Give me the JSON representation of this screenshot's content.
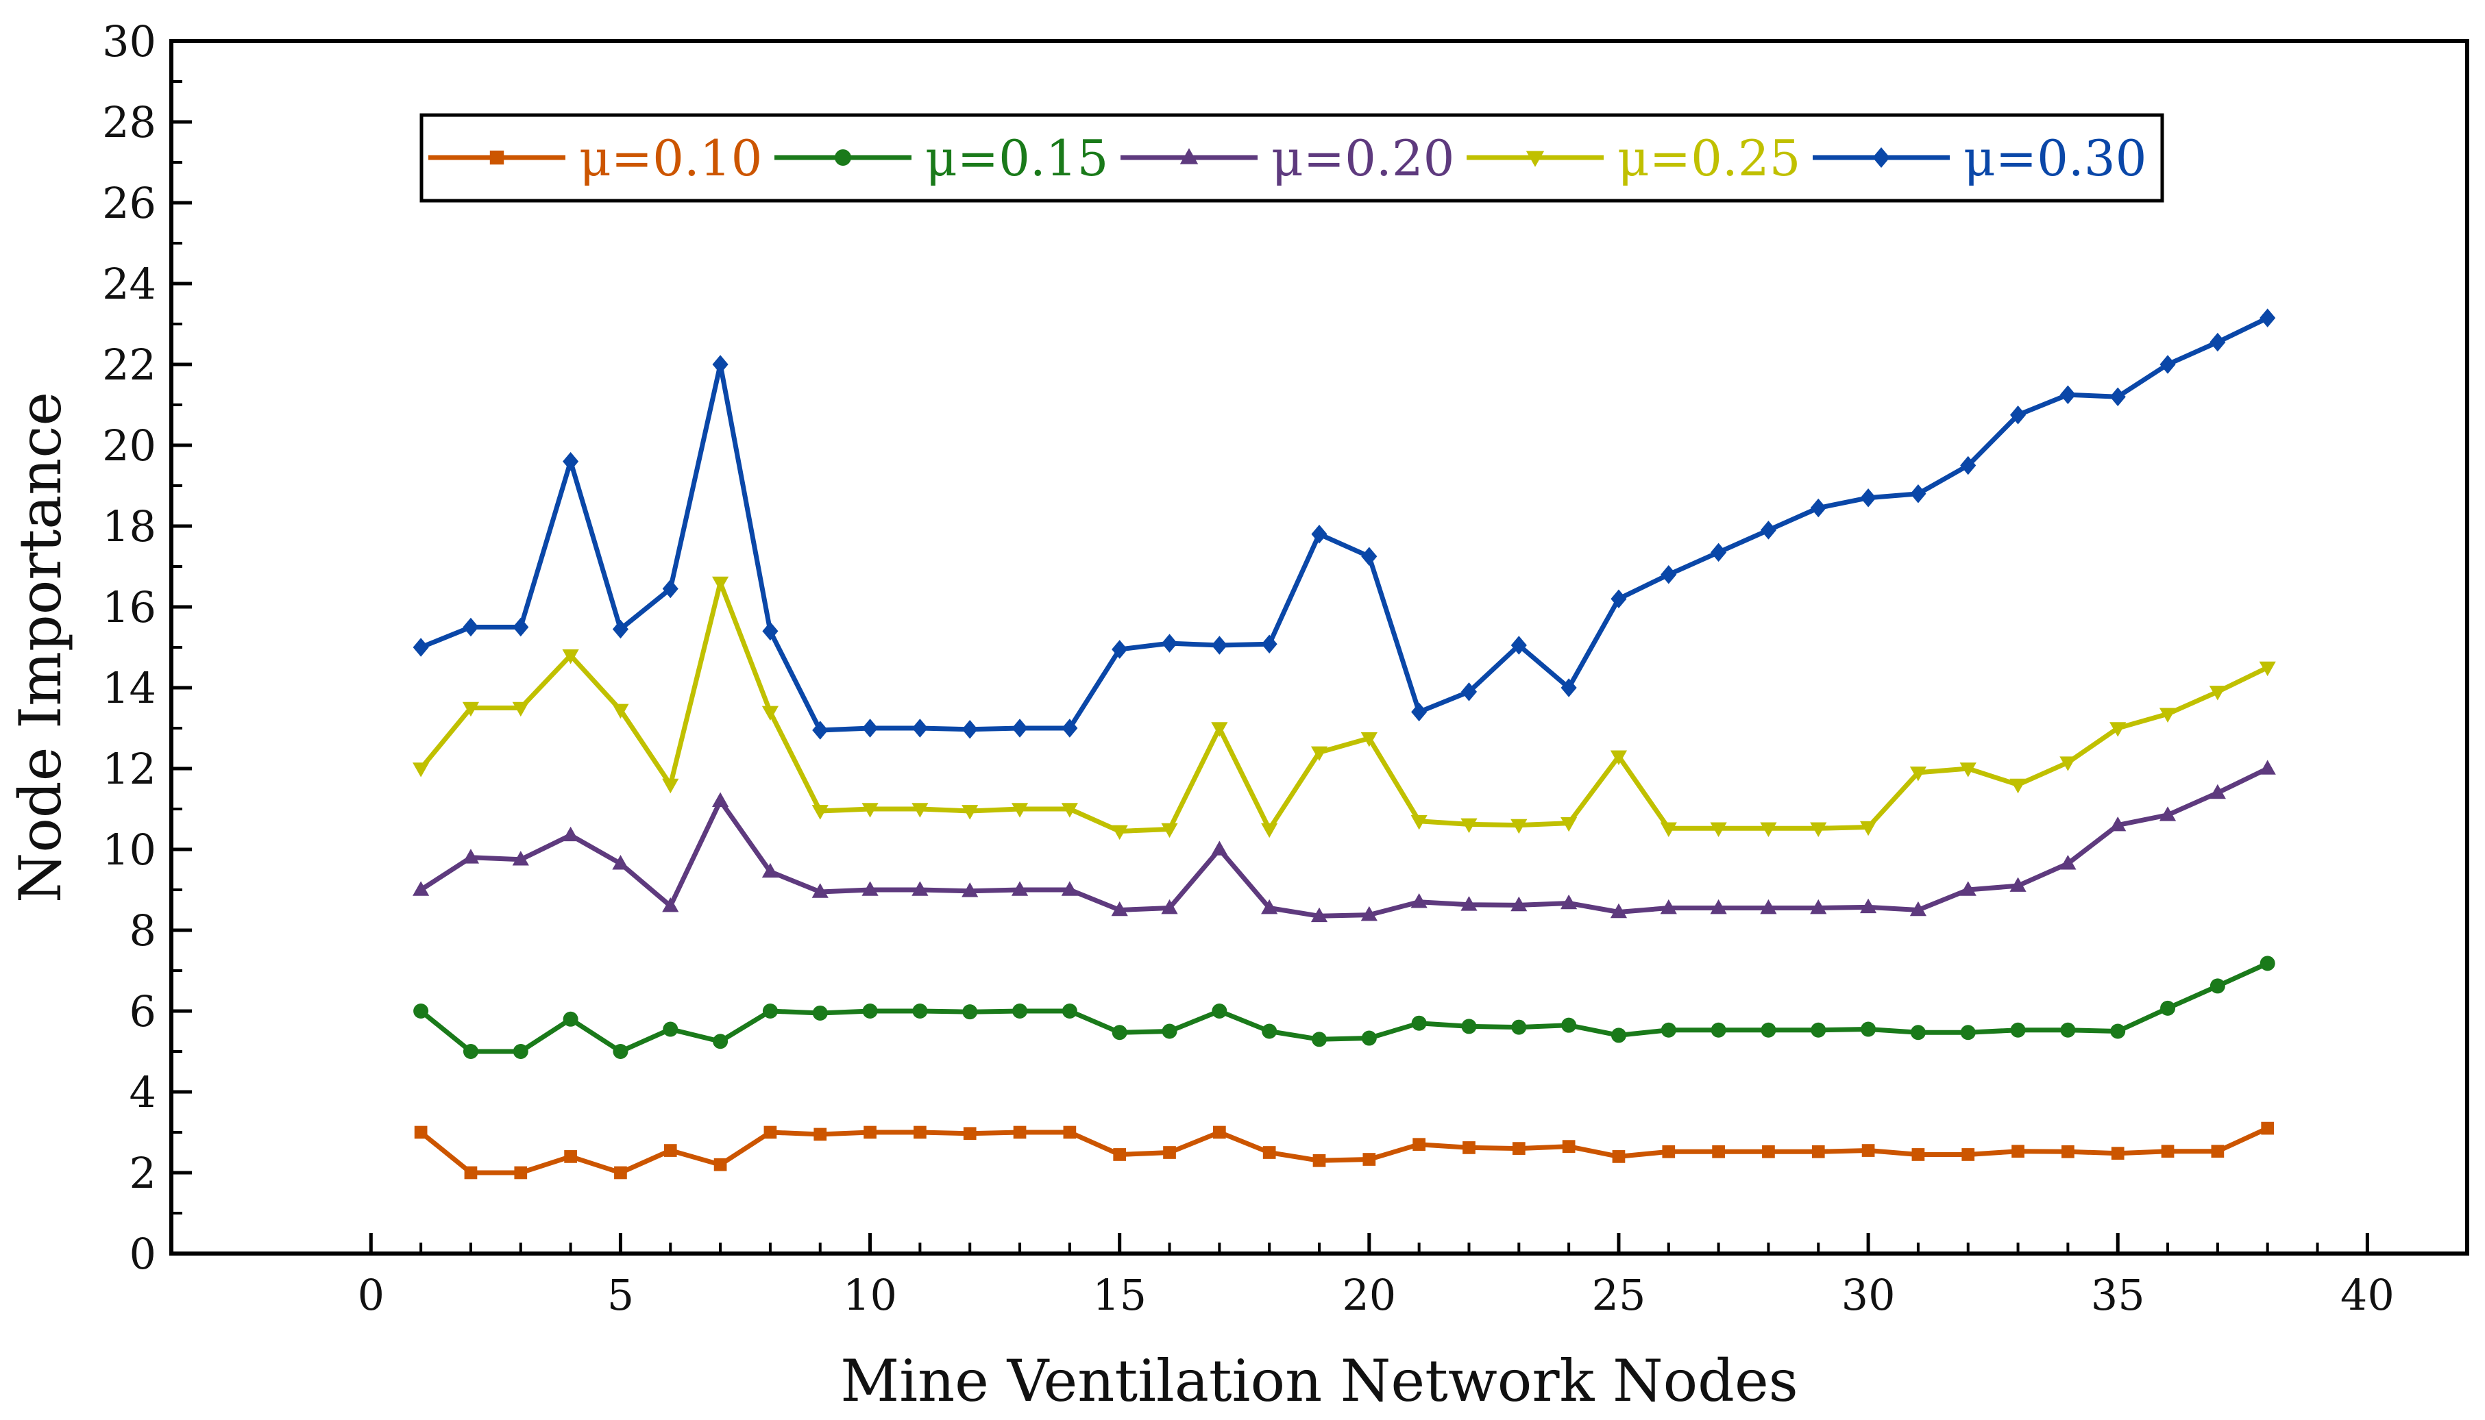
{
  "chart_data": {
    "type": "line",
    "title": "",
    "xlabel": "Mine Ventilation Network Nodes",
    "ylabel": "Node Importance",
    "xlim": [
      -4,
      42
    ],
    "ylim": [
      0,
      30
    ],
    "xticks": [
      0,
      5,
      10,
      15,
      20,
      25,
      30,
      35,
      40
    ],
    "yticks": [
      0,
      2,
      4,
      6,
      8,
      10,
      12,
      14,
      16,
      18,
      20,
      22,
      24,
      26,
      28,
      30
    ],
    "legend_position": "top-center, single row",
    "x": [
      1,
      2,
      3,
      4,
      5,
      6,
      7,
      8,
      9,
      10,
      11,
      12,
      13,
      14,
      15,
      16,
      17,
      18,
      19,
      20,
      21,
      22,
      23,
      24,
      25,
      26,
      27,
      28,
      29,
      30,
      31,
      32,
      33,
      34,
      35,
      36,
      37,
      38
    ],
    "series": [
      {
        "name": "μ=0.10",
        "color": "#cc5500",
        "marker": "square",
        "values": [
          3.0,
          2.0,
          2.0,
          2.4,
          2.0,
          2.55,
          2.2,
          3.0,
          2.95,
          3.0,
          3.0,
          2.97,
          3.0,
          3.0,
          2.45,
          2.5,
          3.0,
          2.5,
          2.3,
          2.33,
          2.7,
          2.62,
          2.6,
          2.65,
          2.4,
          2.52,
          2.52,
          2.52,
          2.52,
          2.55,
          2.45,
          2.45,
          2.53,
          2.52,
          2.48,
          2.53,
          2.53,
          3.1
        ]
      },
      {
        "name": "μ=0.15",
        "color": "#1a7a1a",
        "marker": "circle",
        "values": [
          6.0,
          5.0,
          5.0,
          5.8,
          5.0,
          5.55,
          5.25,
          6.0,
          5.95,
          6.0,
          6.0,
          5.98,
          6.0,
          6.0,
          5.47,
          5.5,
          6.0,
          5.5,
          5.3,
          5.33,
          5.7,
          5.62,
          5.6,
          5.65,
          5.4,
          5.53,
          5.53,
          5.53,
          5.53,
          5.55,
          5.47,
          5.47,
          5.53,
          5.53,
          5.5,
          6.07,
          6.62,
          7.18
        ]
      },
      {
        "name": "μ=0.20",
        "color": "#5e3a7e",
        "marker": "triangle-up",
        "values": [
          9.0,
          9.8,
          9.75,
          10.35,
          9.65,
          8.6,
          11.2,
          9.45,
          8.95,
          9.0,
          9.0,
          8.97,
          9.0,
          9.0,
          8.5,
          8.55,
          10.0,
          8.55,
          8.35,
          8.38,
          8.7,
          8.63,
          8.62,
          8.67,
          8.45,
          8.55,
          8.55,
          8.55,
          8.55,
          8.57,
          8.5,
          9.0,
          9.1,
          9.65,
          10.6,
          10.85,
          11.4,
          12.0
        ]
      },
      {
        "name": "μ=0.25",
        "color": "#c0c000",
        "marker": "triangle-down",
        "values": [
          12.0,
          13.5,
          13.5,
          14.8,
          13.45,
          11.6,
          16.6,
          13.4,
          10.95,
          11.0,
          11.0,
          10.95,
          11.0,
          11.0,
          10.45,
          10.5,
          13.0,
          10.5,
          12.4,
          12.75,
          10.7,
          10.62,
          10.6,
          10.65,
          12.3,
          10.52,
          10.52,
          10.52,
          10.52,
          10.55,
          11.9,
          12.0,
          11.6,
          12.15,
          13.0,
          13.35,
          13.9,
          14.5
        ]
      },
      {
        "name": "μ=0.30",
        "color": "#0a47a8",
        "marker": "diamond",
        "values": [
          15.0,
          15.5,
          15.5,
          19.6,
          15.45,
          16.45,
          22.0,
          15.4,
          12.95,
          13.0,
          13.0,
          12.97,
          13.0,
          13.0,
          14.95,
          15.1,
          15.05,
          15.08,
          17.8,
          17.25,
          13.4,
          13.9,
          15.05,
          14.0,
          16.2,
          16.8,
          17.35,
          17.9,
          18.45,
          18.7,
          18.8,
          19.5,
          20.75,
          21.25,
          21.2,
          22.0,
          22.55,
          23.15
        ]
      }
    ]
  }
}
